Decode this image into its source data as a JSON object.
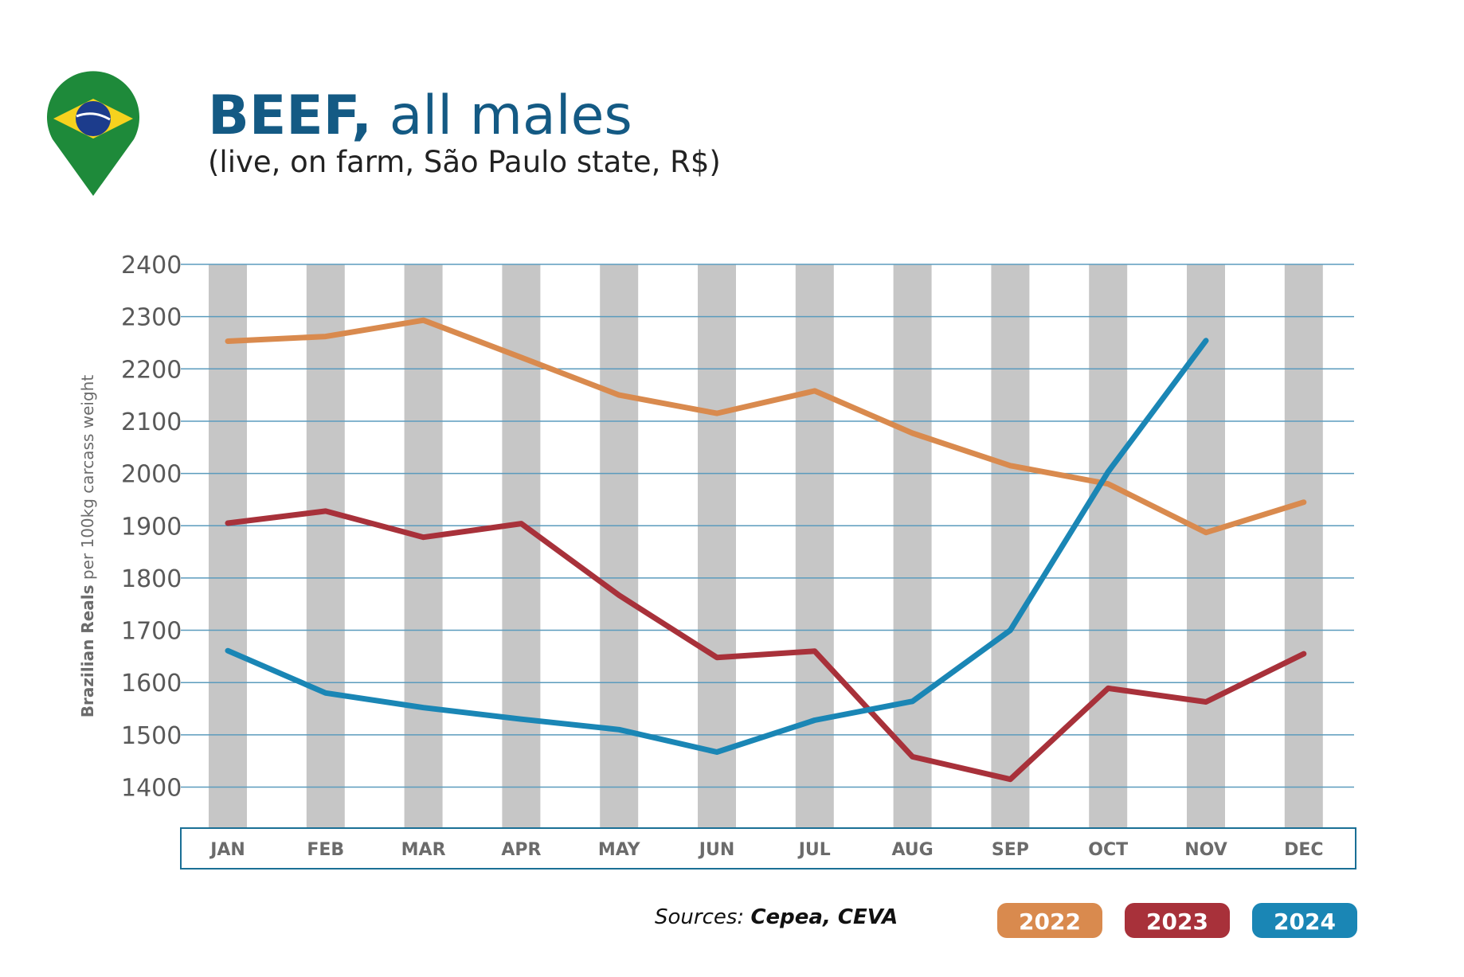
{
  "header": {
    "title_bold": "BEEF,",
    "title_rest": " all males",
    "subtitle": "(live, on farm, São Paulo state, R$)"
  },
  "icon": "brazil-flag-map-pin-icon",
  "source": {
    "prefix": "Sources: ",
    "names": "Cepea, CEVA"
  },
  "colors": {
    "title": "#145a84",
    "grid": "#5b9bbd",
    "bands": "#c6c6c6",
    "2022": "#d98a4e",
    "2023": "#a8313a",
    "2024": "#1a86b5"
  },
  "chart_data": {
    "type": "line",
    "title": "BEEF, all males",
    "subtitle": "(live, on farm, São Paulo state, R$)",
    "ylabel_bold": "Brazilian Reals",
    "ylabel_rest": " per 100kg carcass weight",
    "categories": [
      "JAN",
      "FEB",
      "MAR",
      "APR",
      "MAY",
      "JUN",
      "JUL",
      "AUG",
      "SEP",
      "OCT",
      "NOV",
      "DEC"
    ],
    "yticks": [
      2400,
      2300,
      2200,
      2100,
      2000,
      1900,
      1800,
      1700,
      1600,
      1500,
      1400
    ],
    "ylim": [
      1320,
      2400
    ],
    "grid": true,
    "legend_position": "bottom-right",
    "series": [
      {
        "name": "2022",
        "values": [
          2253,
          2262,
          2293,
          2222,
          2150,
          2115,
          2158,
          2077,
          2015,
          1980,
          1887,
          1945
        ]
      },
      {
        "name": "2023",
        "values": [
          1905,
          1928,
          1878,
          1904,
          1767,
          1648,
          1660,
          1458,
          1415,
          1589,
          1563,
          1655
        ]
      },
      {
        "name": "2024",
        "values": [
          1661,
          1580,
          1552,
          1530,
          1510,
          1467,
          1528,
          1564,
          1700,
          2003,
          2254,
          null
        ]
      }
    ]
  }
}
